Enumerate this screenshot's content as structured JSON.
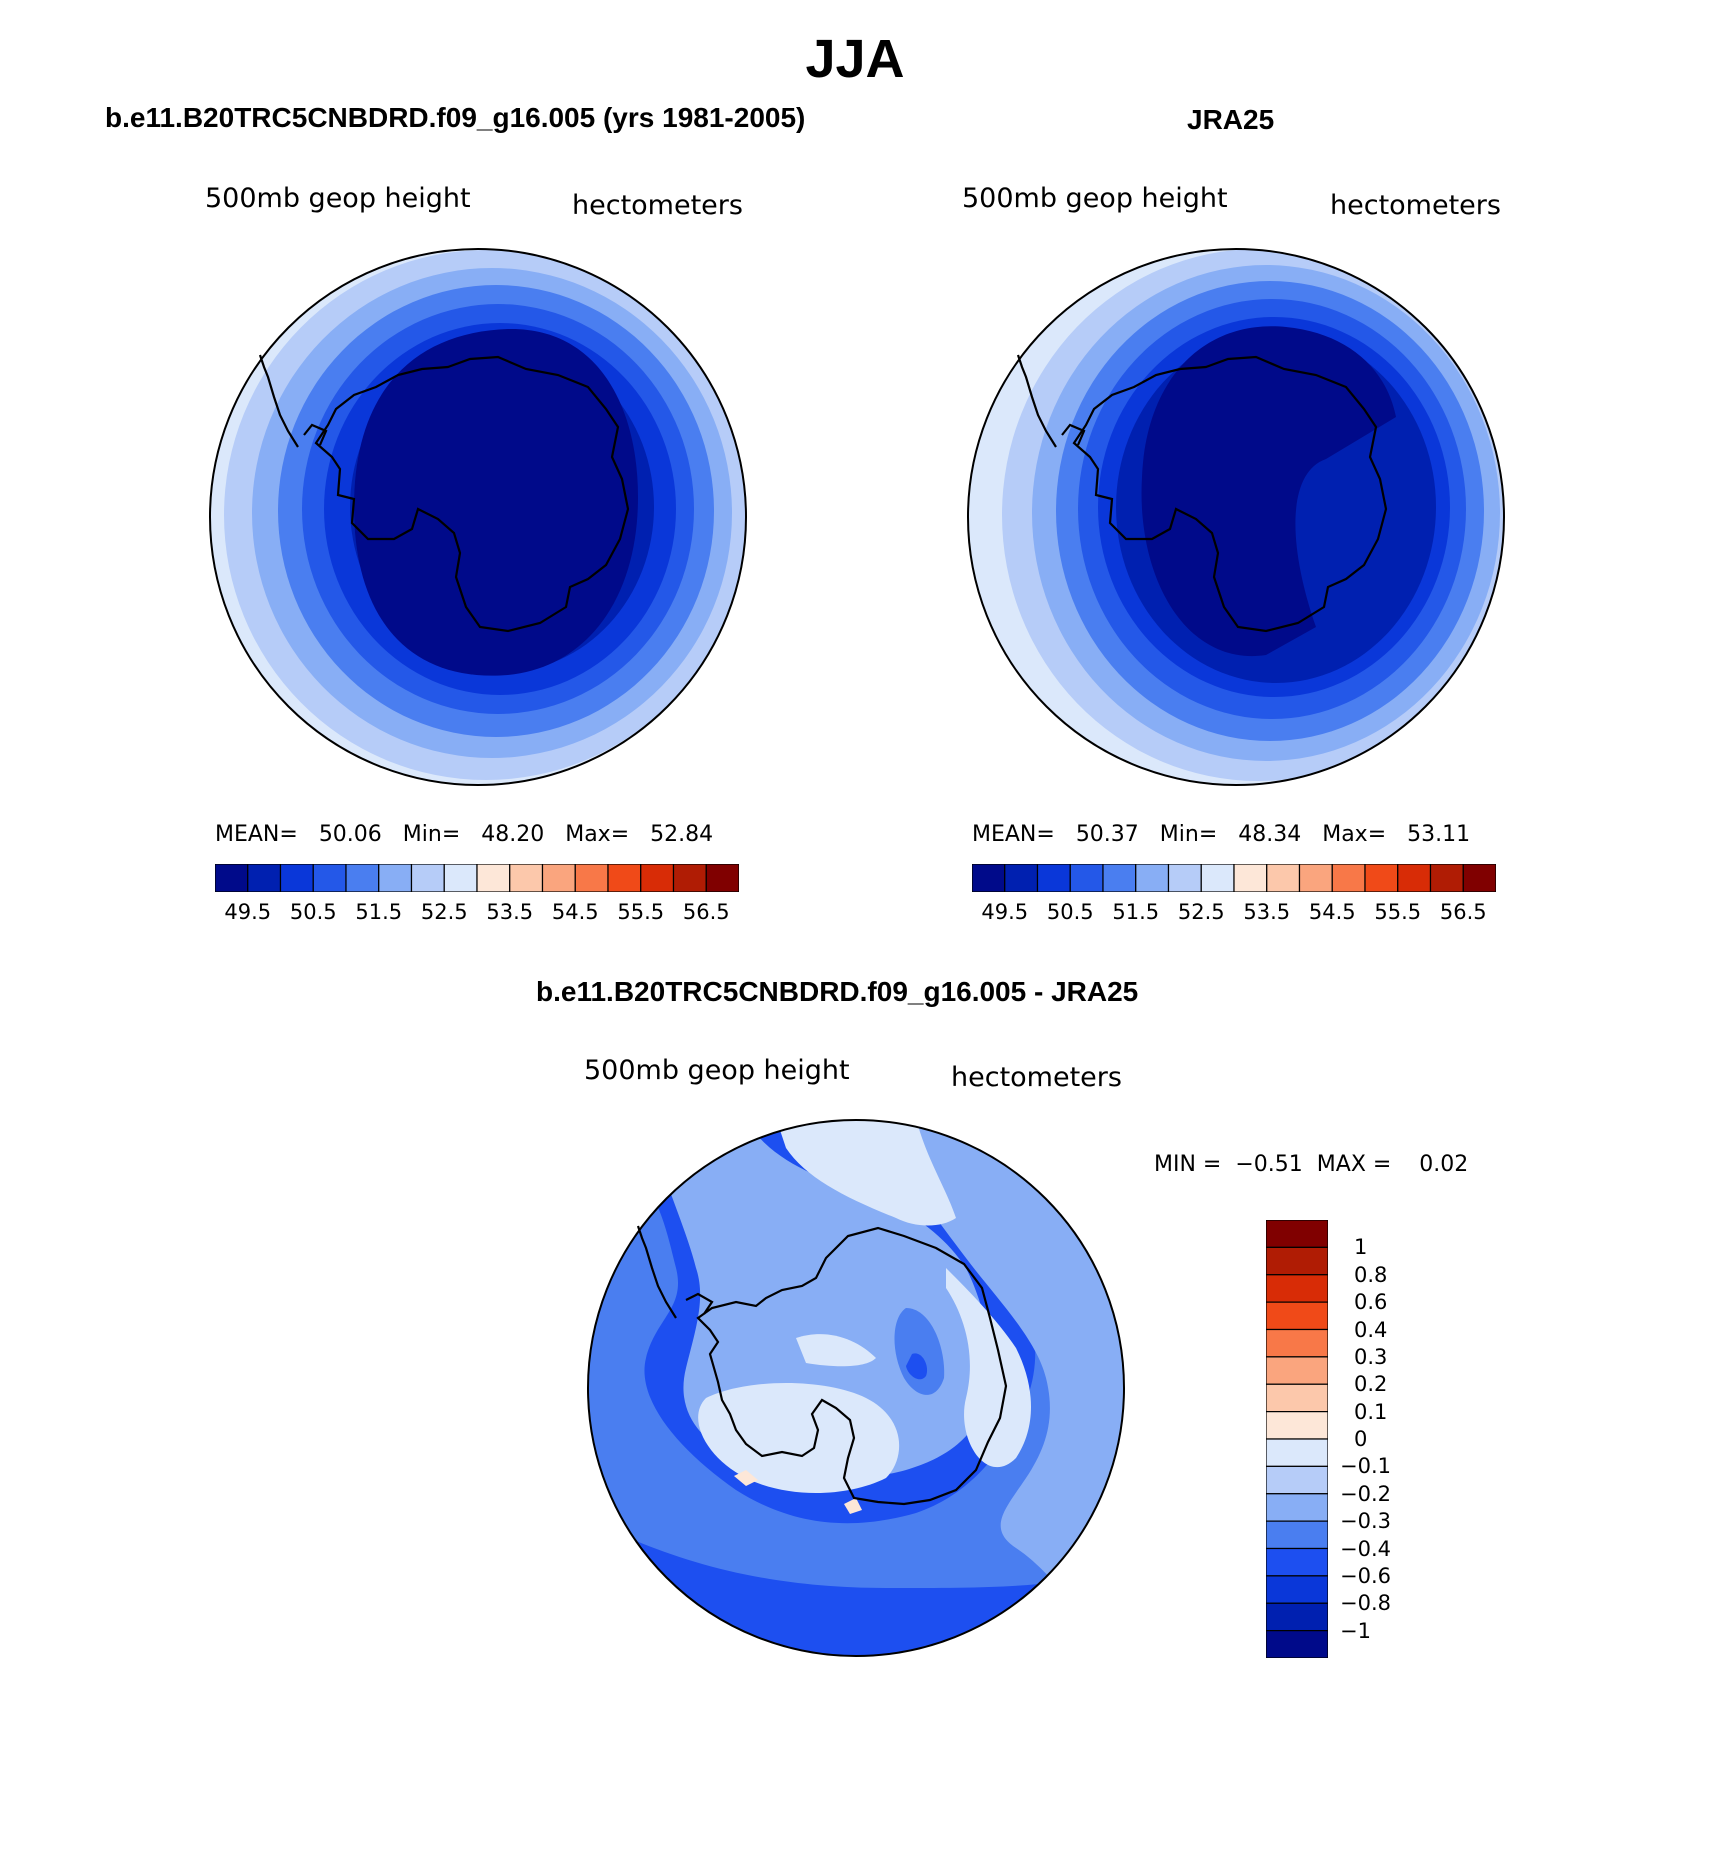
{
  "figure": {
    "title": "JJA",
    "colors": {
      "abs_palette": [
        "#000a8a",
        "#0020b0",
        "#0a37d9",
        "#2458e8",
        "#4a7ef0",
        "#88aef5",
        "#b6ccf8",
        "#dbe8fb",
        "#fde7d8",
        "#fcc8ab",
        "#faa57e",
        "#f87848",
        "#f04a18",
        "#d82c06",
        "#b01c04",
        "#800000"
      ],
      "diff_palette": [
        "#000a8a",
        "#0020b0",
        "#0a37d9",
        "#1d4ff0",
        "#4a7ef0",
        "#88aef5",
        "#b6ccf8",
        "#dbe8fb",
        "#fde7d8",
        "#fcc8ab",
        "#faa57e",
        "#f87848",
        "#f04a18",
        "#d82c06",
        "#b01c04",
        "#800000"
      ],
      "coastline": "#000000"
    }
  },
  "panels": [
    {
      "id": "model",
      "title": "b.e11.B20TRC5CNBDRD.f09_g16.005 (yrs 1981-2005)",
      "variable": "500mb geop height",
      "units": "hectometers",
      "stats": {
        "mean_label": "MEAN=",
        "mean": "50.06",
        "min_label": "Min=",
        "min": "48.20",
        "max_label": "Max=",
        "max": "52.84"
      },
      "colorbar_ticks": [
        "49.5",
        "50.5",
        "51.5",
        "52.5",
        "53.5",
        "54.5",
        "55.5",
        "56.5"
      ],
      "map_rings": [
        52.75,
        52.25,
        51.75,
        51.25,
        50.75,
        50.25,
        49.75,
        49.25
      ]
    },
    {
      "id": "obs",
      "title": "JRA25",
      "variable": "500mb geop height",
      "units": "hectometers",
      "stats": {
        "mean_label": "MEAN=",
        "mean": "50.37",
        "min_label": "Min=",
        "min": "48.34",
        "max_label": "Max=",
        "max": "53.11"
      },
      "colorbar_ticks": [
        "49.5",
        "50.5",
        "51.5",
        "52.5",
        "53.5",
        "54.5",
        "55.5",
        "56.5"
      ],
      "map_rings": [
        52.75,
        52.25,
        51.75,
        51.25,
        50.75,
        50.25,
        49.75,
        49.25
      ]
    }
  ],
  "difference": {
    "title": "b.e11.B20TRC5CNBDRD.f09_g16.005 - JRA25",
    "variable": "500mb geop height",
    "units": "hectometers",
    "stats": {
      "min_label": "MIN =",
      "min": "−0.51",
      "max_label": "MAX =",
      "max": "0.02"
    },
    "colorbar_ticks": [
      "1",
      "0.8",
      "0.6",
      "0.4",
      "0.3",
      "0.2",
      "0.1",
      "0",
      "−0.1",
      "−0.2",
      "−0.3",
      "−0.4",
      "−0.6",
      "−0.8",
      "−1"
    ]
  },
  "chart_data": [
    {
      "type": "heatmap",
      "title": "500mb geop height",
      "units": "hectometers",
      "levels": [
        49.5,
        50,
        50.5,
        51,
        51.5,
        52,
        52.5,
        53,
        53.5,
        54,
        54.5,
        55,
        55.5,
        56,
        56.5
      ],
      "mean": 50.06,
      "min": 48.2,
      "max": 52.84
    },
    {
      "type": "heatmap",
      "title": "500mb geop height",
      "units": "hectometers",
      "levels": [
        49.5,
        50,
        50.5,
        51,
        51.5,
        52,
        52.5,
        53,
        53.5,
        54,
        54.5,
        55,
        55.5,
        56,
        56.5
      ],
      "mean": 50.37,
      "min": 48.34,
      "max": 53.11
    },
    {
      "type": "heatmap",
      "title": "500mb geop height",
      "units": "hectometers",
      "levels": [
        -1,
        -0.8,
        -0.6,
        -0.4,
        -0.3,
        -0.2,
        -0.1,
        0,
        0.1,
        0.2,
        0.3,
        0.4,
        0.6,
        0.8,
        1
      ],
      "min": -0.51,
      "max": 0.02
    }
  ]
}
